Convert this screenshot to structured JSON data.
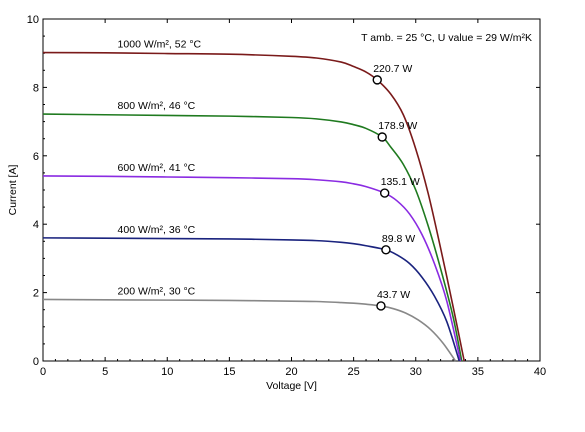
{
  "chart_data": {
    "type": "line",
    "title": "",
    "xlabel": "Voltage [V]",
    "ylabel": "Current [A]",
    "xlim": [
      0,
      40
    ],
    "ylim": [
      0,
      10
    ],
    "x_ticks": [
      0,
      5,
      10,
      15,
      20,
      25,
      30,
      35,
      40
    ],
    "y_ticks": [
      0,
      2,
      4,
      6,
      8,
      10
    ],
    "grid": false,
    "legend": "none",
    "conditions_label": "T amb. = 25 °C,  U value = 29 W/m²K",
    "series": [
      {
        "name": "1000 W/m², 52 °C",
        "color": "#7a1a1a",
        "isc": 9.02,
        "voc": 33.9,
        "mpp_v": 26.9,
        "mpp_i": 8.22,
        "mpp_label": "220.7 W",
        "x": [
          0,
          5,
          10,
          15,
          20,
          22,
          24,
          25,
          26,
          26.9,
          28,
          29,
          30,
          31,
          32,
          33,
          33.9
        ],
        "y": [
          9.02,
          9.01,
          8.99,
          8.97,
          8.91,
          8.86,
          8.74,
          8.61,
          8.45,
          8.22,
          7.8,
          7.2,
          6.2,
          4.9,
          3.3,
          1.6,
          0
        ]
      },
      {
        "name": "800 W/m², 46 °C",
        "color": "#1f7a1f",
        "isc": 7.22,
        "voc": 33.7,
        "mpp_v": 27.3,
        "mpp_i": 6.55,
        "mpp_label": "178.9 W",
        "x": [
          0,
          5,
          10,
          15,
          20,
          22,
          24,
          25,
          26,
          27.3,
          28,
          29,
          30,
          31,
          32,
          33,
          33.7
        ],
        "y": [
          7.22,
          7.2,
          7.18,
          7.16,
          7.12,
          7.08,
          6.99,
          6.91,
          6.8,
          6.55,
          6.25,
          5.75,
          5.0,
          3.95,
          2.7,
          1.3,
          0
        ]
      },
      {
        "name": "600 W/m², 41 °C",
        "color": "#8a2be2",
        "isc": 5.41,
        "voc": 33.6,
        "mpp_v": 27.5,
        "mpp_i": 4.91,
        "mpp_label": "135.1 W",
        "x": [
          0,
          5,
          10,
          15,
          20,
          22,
          24,
          25,
          26,
          27.5,
          28.5,
          29.5,
          30.5,
          31.5,
          32.5,
          33.6
        ],
        "y": [
          5.41,
          5.4,
          5.38,
          5.36,
          5.33,
          5.3,
          5.24,
          5.18,
          5.1,
          4.91,
          4.68,
          4.3,
          3.7,
          2.85,
          1.75,
          0
        ]
      },
      {
        "name": "400 W/m², 36 °C",
        "color": "#1a237e",
        "isc": 3.6,
        "voc": 33.5,
        "mpp_v": 27.6,
        "mpp_i": 3.25,
        "mpp_label": "89.8 W",
        "x": [
          0,
          5,
          10,
          15,
          20,
          22,
          24,
          25,
          26,
          27.6,
          28.5,
          29.5,
          30.5,
          31.5,
          32.5,
          33.5
        ],
        "y": [
          3.6,
          3.59,
          3.58,
          3.57,
          3.54,
          3.52,
          3.47,
          3.43,
          3.37,
          3.25,
          3.1,
          2.85,
          2.45,
          1.9,
          1.15,
          0
        ]
      },
      {
        "name": "200 W/m², 30 °C",
        "color": "#888888",
        "isc": 1.8,
        "voc": 33.2,
        "mpp_v": 27.2,
        "mpp_i": 1.61,
        "mpp_label": "43.7 W",
        "x": [
          0,
          5,
          10,
          15,
          20,
          22,
          24,
          25,
          26,
          27.2,
          28.2,
          29.2,
          30.2,
          31.2,
          32.2,
          33.2
        ],
        "y": [
          1.8,
          1.79,
          1.78,
          1.77,
          1.75,
          1.74,
          1.71,
          1.69,
          1.66,
          1.61,
          1.53,
          1.4,
          1.2,
          0.92,
          0.52,
          0
        ]
      }
    ]
  }
}
